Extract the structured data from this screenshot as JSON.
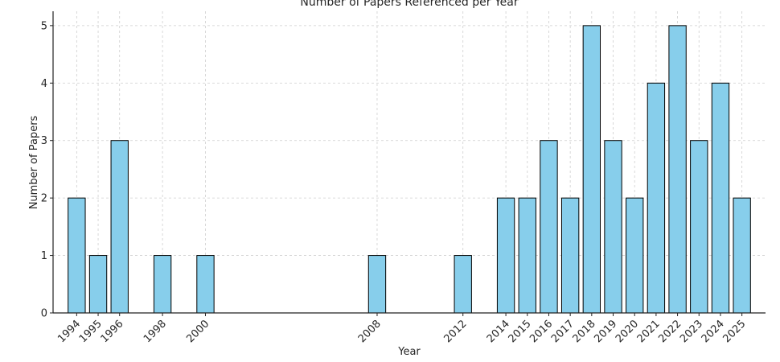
{
  "chart_data": {
    "type": "bar",
    "title": "Number of Papers Referenced per Year",
    "xlabel": "Year",
    "ylabel": "Number of Papers",
    "x": [
      1994,
      1995,
      1996,
      1998,
      2000,
      2008,
      2012,
      2014,
      2015,
      2016,
      2017,
      2018,
      2019,
      2020,
      2021,
      2022,
      2023,
      2024,
      2025
    ],
    "values": [
      2,
      1,
      3,
      1,
      1,
      1,
      1,
      2,
      2,
      3,
      2,
      5,
      3,
      2,
      4,
      5,
      3,
      4,
      2
    ],
    "x_scale": "linear",
    "xlim": [
      1992.9,
      2026.1
    ],
    "ylim": [
      0,
      5.25
    ],
    "yticks": [
      0,
      1,
      2,
      3,
      4,
      5
    ],
    "grid": true,
    "bar_color": "#87CEEB",
    "edge_color": "#000000"
  }
}
